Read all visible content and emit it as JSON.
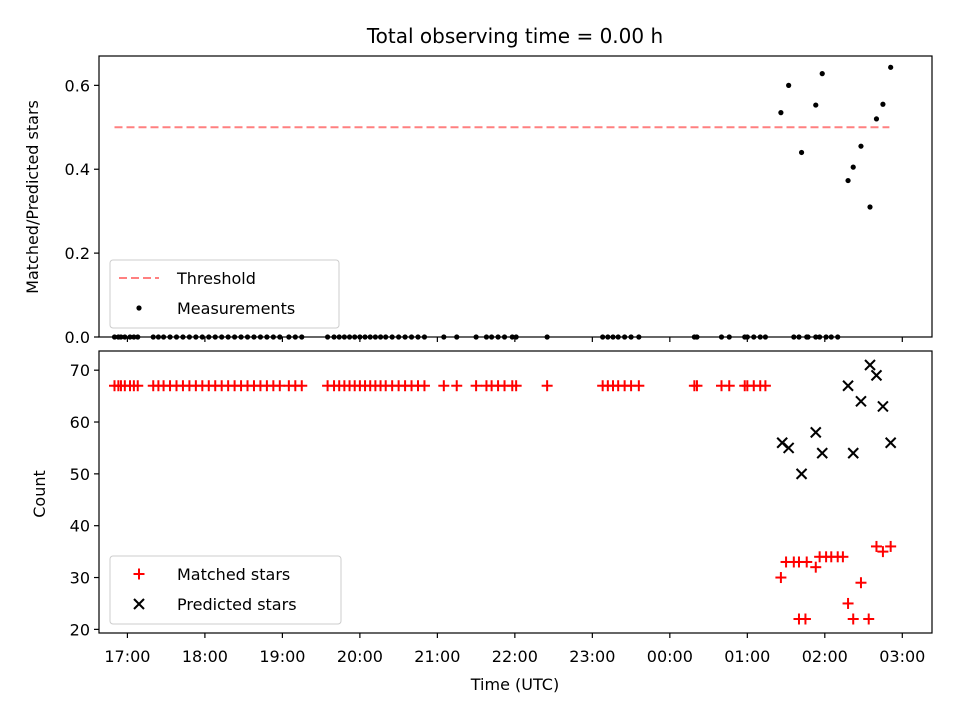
{
  "title": "Total observing time = 0.00 h",
  "colors": {
    "threshold": "#ff8080",
    "measurement": "#000000",
    "matched": "#ff0000",
    "predicted": "#000000"
  },
  "chart_data": [
    {
      "type": "scatter",
      "ylabel": "Matched/Predicted stars",
      "ylim": [
        0,
        0.67
      ],
      "yticks": [
        0.0,
        0.2,
        0.4,
        0.6
      ],
      "ytick_labels": [
        "0.0",
        "0.2",
        "0.4",
        "0.6"
      ],
      "xlim": [
        "16:38",
        "03:23"
      ],
      "threshold": {
        "name": "Threshold",
        "value": 0.5,
        "x_range": [
          "16:50",
          "02:50"
        ]
      },
      "series": [
        {
          "name": "Measurements",
          "marker": "dot",
          "points": [
            [
              "16:50",
              0
            ],
            [
              "16:53",
              0
            ],
            [
              "16:55",
              0
            ],
            [
              "16:58",
              0
            ],
            [
              "17:02",
              0
            ],
            [
              "17:05",
              0
            ],
            [
              "17:08",
              0
            ],
            [
              "17:20",
              0
            ],
            [
              "17:24",
              0
            ],
            [
              "17:28",
              0
            ],
            [
              "17:33",
              0
            ],
            [
              "17:38",
              0
            ],
            [
              "17:43",
              0
            ],
            [
              "17:48",
              0
            ],
            [
              "17:53",
              0
            ],
            [
              "17:58",
              0
            ],
            [
              "18:03",
              0
            ],
            [
              "18:08",
              0
            ],
            [
              "18:13",
              0
            ],
            [
              "18:18",
              0
            ],
            [
              "18:23",
              0
            ],
            [
              "18:28",
              0
            ],
            [
              "18:33",
              0
            ],
            [
              "18:38",
              0
            ],
            [
              "18:43",
              0
            ],
            [
              "18:48",
              0
            ],
            [
              "18:53",
              0
            ],
            [
              "18:58",
              0
            ],
            [
              "19:05",
              0
            ],
            [
              "19:10",
              0
            ],
            [
              "19:15",
              0
            ],
            [
              "19:35",
              0
            ],
            [
              "19:40",
              0
            ],
            [
              "19:44",
              0
            ],
            [
              "19:48",
              0
            ],
            [
              "19:52",
              0
            ],
            [
              "19:56",
              0
            ],
            [
              "20:00",
              0
            ],
            [
              "20:04",
              0
            ],
            [
              "20:08",
              0
            ],
            [
              "20:12",
              0
            ],
            [
              "20:16",
              0
            ],
            [
              "20:20",
              0
            ],
            [
              "20:25",
              0
            ],
            [
              "20:30",
              0
            ],
            [
              "20:35",
              0
            ],
            [
              "20:40",
              0
            ],
            [
              "20:45",
              0
            ],
            [
              "20:50",
              0
            ],
            [
              "21:05",
              0
            ],
            [
              "21:15",
              0
            ],
            [
              "21:30",
              0
            ],
            [
              "21:38",
              0
            ],
            [
              "21:42",
              0
            ],
            [
              "21:47",
              0
            ],
            [
              "21:52",
              0
            ],
            [
              "21:58",
              0
            ],
            [
              "22:01",
              0
            ],
            [
              "22:25",
              0
            ],
            [
              "23:08",
              0
            ],
            [
              "23:12",
              0
            ],
            [
              "23:16",
              0
            ],
            [
              "23:20",
              0
            ],
            [
              "23:25",
              0
            ],
            [
              "23:30",
              0
            ],
            [
              "23:36",
              0
            ],
            [
              "00:19",
              0
            ],
            [
              "00:21",
              0
            ],
            [
              "00:40",
              0
            ],
            [
              "00:46",
              0
            ],
            [
              "00:58",
              0
            ],
            [
              "01:00",
              0
            ],
            [
              "01:05",
              0
            ],
            [
              "01:10",
              0
            ],
            [
              "01:14",
              0
            ],
            [
              "01:26",
              0.535
            ],
            [
              "01:32",
              0.6
            ],
            [
              "01:36",
              0
            ],
            [
              "01:40",
              0
            ],
            [
              "01:46",
              0
            ],
            [
              "01:53",
              0
            ],
            [
              "01:42",
              0.44
            ],
            [
              "01:47",
              0
            ],
            [
              "01:56",
              0
            ],
            [
              "02:01",
              0
            ],
            [
              "02:05",
              0
            ],
            [
              "02:10",
              0
            ],
            [
              "01:53",
              0.553
            ],
            [
              "01:58",
              0.628
            ],
            [
              "02:18",
              0.373
            ],
            [
              "02:22",
              0.405
            ],
            [
              "02:28",
              0.455
            ],
            [
              "02:35",
              0.31
            ],
            [
              "02:40",
              0.52
            ],
            [
              "02:45",
              0.555
            ],
            [
              "02:51",
              0.643
            ]
          ]
        }
      ],
      "legend": {
        "position": "lower-left",
        "entries": [
          "Threshold",
          "Measurements"
        ]
      }
    },
    {
      "type": "scatter",
      "ylabel": "Count",
      "xlabel": "Time (UTC)",
      "ylim": [
        19.3,
        73.7
      ],
      "yticks": [
        20,
        30,
        40,
        50,
        60,
        70
      ],
      "ytick_labels": [
        "20",
        "30",
        "40",
        "50",
        "60",
        "70"
      ],
      "xlim": [
        "16:38",
        "03:23"
      ],
      "xtick_labels": [
        "17:00",
        "18:00",
        "19:00",
        "20:00",
        "21:00",
        "22:00",
        "23:00",
        "00:00",
        "01:00",
        "02:00",
        "03:00"
      ],
      "series": [
        {
          "name": "Matched stars",
          "marker": "plus",
          "points": [
            [
              "16:50",
              67
            ],
            [
              "16:53",
              67
            ],
            [
              "16:55",
              67
            ],
            [
              "16:58",
              67
            ],
            [
              "17:02",
              67
            ],
            [
              "17:05",
              67
            ],
            [
              "17:08",
              67
            ],
            [
              "17:20",
              67
            ],
            [
              "17:24",
              67
            ],
            [
              "17:28",
              67
            ],
            [
              "17:33",
              67
            ],
            [
              "17:38",
              67
            ],
            [
              "17:43",
              67
            ],
            [
              "17:48",
              67
            ],
            [
              "17:53",
              67
            ],
            [
              "17:58",
              67
            ],
            [
              "18:03",
              67
            ],
            [
              "18:08",
              67
            ],
            [
              "18:13",
              67
            ],
            [
              "18:18",
              67
            ],
            [
              "18:23",
              67
            ],
            [
              "18:28",
              67
            ],
            [
              "18:33",
              67
            ],
            [
              "18:38",
              67
            ],
            [
              "18:43",
              67
            ],
            [
              "18:48",
              67
            ],
            [
              "18:53",
              67
            ],
            [
              "18:58",
              67
            ],
            [
              "19:05",
              67
            ],
            [
              "19:10",
              67
            ],
            [
              "19:15",
              67
            ],
            [
              "19:35",
              67
            ],
            [
              "19:40",
              67
            ],
            [
              "19:44",
              67
            ],
            [
              "19:48",
              67
            ],
            [
              "19:52",
              67
            ],
            [
              "19:56",
              67
            ],
            [
              "20:00",
              67
            ],
            [
              "20:04",
              67
            ],
            [
              "20:08",
              67
            ],
            [
              "20:12",
              67
            ],
            [
              "20:16",
              67
            ],
            [
              "20:20",
              67
            ],
            [
              "20:25",
              67
            ],
            [
              "20:30",
              67
            ],
            [
              "20:35",
              67
            ],
            [
              "20:40",
              67
            ],
            [
              "20:45",
              67
            ],
            [
              "20:50",
              67
            ],
            [
              "21:05",
              67
            ],
            [
              "21:15",
              67
            ],
            [
              "21:30",
              67
            ],
            [
              "21:38",
              67
            ],
            [
              "21:42",
              67
            ],
            [
              "21:47",
              67
            ],
            [
              "21:52",
              67
            ],
            [
              "21:58",
              67
            ],
            [
              "22:01",
              67
            ],
            [
              "22:25",
              67
            ],
            [
              "23:08",
              67
            ],
            [
              "23:12",
              67
            ],
            [
              "23:16",
              67
            ],
            [
              "23:20",
              67
            ],
            [
              "23:25",
              67
            ],
            [
              "23:30",
              67
            ],
            [
              "23:36",
              67
            ],
            [
              "00:19",
              67
            ],
            [
              "00:21",
              67
            ],
            [
              "00:40",
              67
            ],
            [
              "00:46",
              67
            ],
            [
              "00:58",
              67
            ],
            [
              "01:00",
              67
            ],
            [
              "01:05",
              67
            ],
            [
              "01:10",
              67
            ],
            [
              "01:14",
              67
            ],
            [
              "01:26",
              30
            ],
            [
              "01:30",
              33
            ],
            [
              "01:36",
              33
            ],
            [
              "01:40",
              33
            ],
            [
              "01:46",
              33
            ],
            [
              "01:40",
              22
            ],
            [
              "01:45",
              22
            ],
            [
              "01:53",
              32
            ],
            [
              "01:56",
              34
            ],
            [
              "02:01",
              34
            ],
            [
              "02:05",
              34
            ],
            [
              "02:10",
              34
            ],
            [
              "02:14",
              34
            ],
            [
              "02:18",
              25
            ],
            [
              "02:22",
              22
            ],
            [
              "02:28",
              29
            ],
            [
              "02:34",
              22
            ],
            [
              "02:40",
              36
            ],
            [
              "02:45",
              35
            ],
            [
              "02:51",
              36
            ]
          ]
        },
        {
          "name": "Predicted stars",
          "marker": "x",
          "points": [
            [
              "01:27",
              56
            ],
            [
              "01:32",
              55
            ],
            [
              "01:42",
              50
            ],
            [
              "01:53",
              58
            ],
            [
              "01:58",
              54
            ],
            [
              "02:18",
              67
            ],
            [
              "02:22",
              54
            ],
            [
              "02:28",
              64
            ],
            [
              "02:35",
              71
            ],
            [
              "02:40",
              69
            ],
            [
              "02:45",
              63
            ],
            [
              "02:51",
              56
            ]
          ]
        }
      ],
      "legend": {
        "position": "lower-left",
        "entries": [
          "Matched stars",
          "Predicted stars"
        ]
      }
    }
  ]
}
